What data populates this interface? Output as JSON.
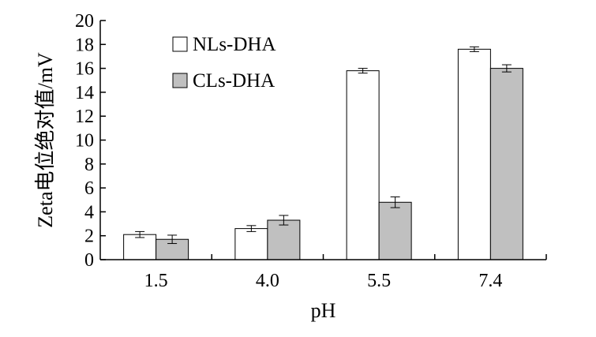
{
  "chart_data": {
    "type": "bar",
    "categories": [
      "1.5",
      "4.0",
      "5.5",
      "7.4"
    ],
    "series": [
      {
        "name": "NLs-DHA",
        "values": [
          2.1,
          2.6,
          15.8,
          17.6
        ],
        "errors": [
          0.25,
          0.25,
          0.2,
          0.2
        ],
        "color": "#ffffff"
      },
      {
        "name": "CLs-DHA",
        "values": [
          1.7,
          3.3,
          4.8,
          16.0
        ],
        "errors": [
          0.35,
          0.4,
          0.45,
          0.3
        ],
        "color": "#c0c0c0"
      }
    ],
    "xlabel": "pH",
    "ylabel": "Zeta电位绝对值/mV",
    "ylim": [
      0,
      20
    ],
    "yticks": [
      "0",
      "2",
      "4",
      "6",
      "8",
      "10",
      "12",
      "14",
      "16",
      "18",
      "20"
    ],
    "grid": false,
    "legend_position": "top-left"
  }
}
